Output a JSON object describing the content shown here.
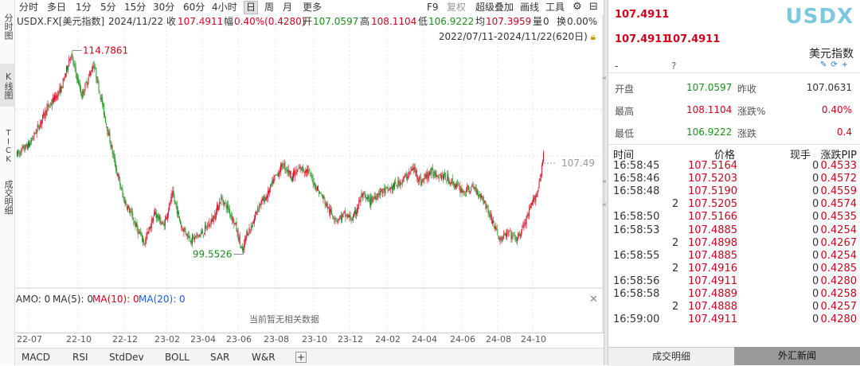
{
  "left_tabs": [
    {
      "label": "分时图",
      "active": false
    },
    {
      "label": "K线图",
      "active": true
    },
    {
      "label": "TICK",
      "active": false
    },
    {
      "label": "成交明细",
      "active": false
    }
  ],
  "periods": {
    "items": [
      "分时",
      "多日",
      "1分",
      "5分",
      "15分",
      "30分",
      "60分",
      "4小时",
      "日",
      "周",
      "月",
      "更多"
    ],
    "active": "日",
    "right_items": [
      "F9",
      "复权",
      "超级叠加",
      "画线",
      "工具"
    ]
  },
  "info": {
    "symbol": "USDX.FX[美元指数]",
    "date": "2024/11/22",
    "close_label": "收",
    "close": "107.4911",
    "amp_label": "幅",
    "amp": "0.40%(0.4280)",
    "open_label": "开",
    "open": "107.0597",
    "high_label": "高",
    "high": "108.1104",
    "low_label": "低",
    "low": "106.9222",
    "avg_label": "均",
    "avg": "107.3959",
    "vol_label": "量",
    "vol": "0",
    "turn_label": "换",
    "turn": "0.00%"
  },
  "range": "2022/07/11-2024/11/22(620日)",
  "indicators": {
    "amo": "AMO: 0",
    "ma5": "MA(5): 0",
    "ma10": "MA(10): 0",
    "ma20": "MA(20): 0",
    "nodata": "当前暂无相关数据"
  },
  "bottom_tabs": [
    "MACD",
    "RSI",
    "StdDev",
    "BOLL",
    "SAR",
    "W&R"
  ],
  "chart_data": {
    "type": "candlestick",
    "x_ticks": [
      "22-07",
      "22-10",
      "22-12",
      "23-02",
      "23-04",
      "23-06",
      "23-08",
      "23-10",
      "23-12",
      "24-02",
      "24-04",
      "24-06",
      "24-08",
      "24-10"
    ],
    "annotations": {
      "max": "114.7861",
      "min": "99.5526",
      "last": "107.49"
    },
    "ylim": [
      97.5,
      116.0
    ],
    "anchors": [
      [
        0,
        107.2
      ],
      [
        15,
        108.0
      ],
      [
        35,
        110.5
      ],
      [
        52,
        112.0
      ],
      [
        63,
        114.5
      ],
      [
        76,
        111.5
      ],
      [
        90,
        113.8
      ],
      [
        103,
        110.0
      ],
      [
        115,
        106.5
      ],
      [
        125,
        104.0
      ],
      [
        133,
        103.0
      ],
      [
        143,
        101.5
      ],
      [
        150,
        100.8
      ],
      [
        162,
        103.0
      ],
      [
        172,
        102.0
      ],
      [
        183,
        104.3
      ],
      [
        193,
        102.0
      ],
      [
        205,
        101.0
      ],
      [
        218,
        101.5
      ],
      [
        230,
        102.5
      ],
      [
        240,
        104.0
      ],
      [
        249,
        103.2
      ],
      [
        257,
        102.0
      ],
      [
        265,
        100.0
      ],
      [
        270,
        101.5
      ],
      [
        276,
        102.0
      ],
      [
        284,
        103.5
      ],
      [
        294,
        104.2
      ],
      [
        303,
        105.5
      ],
      [
        313,
        106.5
      ],
      [
        323,
        105.6
      ],
      [
        333,
        106.2
      ],
      [
        342,
        106.0
      ],
      [
        352,
        104.8
      ],
      [
        360,
        104.0
      ],
      [
        368,
        103.0
      ],
      [
        376,
        102.5
      ],
      [
        385,
        102.8
      ],
      [
        395,
        102.5
      ],
      [
        405,
        104.2
      ],
      [
        415,
        103.8
      ],
      [
        426,
        104.5
      ],
      [
        436,
        104.6
      ],
      [
        446,
        105.0
      ],
      [
        456,
        105.5
      ],
      [
        466,
        106.2
      ],
      [
        475,
        105.2
      ],
      [
        485,
        105.9
      ],
      [
        495,
        105.8
      ],
      [
        505,
        105.5
      ],
      [
        515,
        105.0
      ],
      [
        525,
        104.5
      ],
      [
        537,
        104.8
      ],
      [
        548,
        104.0
      ],
      [
        558,
        102.5
      ],
      [
        568,
        101.0
      ],
      [
        578,
        101.5
      ],
      [
        588,
        101.0
      ],
      [
        598,
        102.3
      ],
      [
        605,
        103.5
      ],
      [
        612,
        104.5
      ],
      [
        620,
        107.5
      ]
    ]
  },
  "quote": {
    "last1": "107.4911",
    "last2": "107.4911",
    "last3": "107.4911",
    "code": "USDX",
    "name": "美元指数",
    "dash": "-",
    "qmark": "?",
    "open_label": "开盘",
    "open": "107.0597",
    "prev_label": "昨收",
    "prev": "107.0631",
    "high_label": "最高",
    "high": "108.1104",
    "chgpct_label": "涨跌%",
    "chgpct": "0.40%",
    "low_label": "最低",
    "low": "106.9222",
    "chg_label": "涨跌",
    "chg": "0.4"
  },
  "ticks": {
    "headers": {
      "time": "时间",
      "price": "价格",
      "vol": "现手",
      "pip": "涨跌PIP"
    },
    "rows": [
      [
        "16:58:45",
        "107.5164",
        "0",
        "0.4533"
      ],
      [
        "16:58:46",
        "107.5203",
        "0",
        "0.4572"
      ],
      [
        "16:58:48",
        "107.5190",
        "0",
        "0.4559"
      ],
      [
        "2",
        "107.5205",
        "0",
        "0.4574"
      ],
      [
        "16:58:50",
        "107.5166",
        "0",
        "0.4535"
      ],
      [
        "16:58:53",
        "107.4885",
        "0",
        "0.4254"
      ],
      [
        "2",
        "107.4898",
        "0",
        "0.4267"
      ],
      [
        "16:58:55",
        "107.4885",
        "0",
        "0.4254"
      ],
      [
        "2",
        "107.4916",
        "0",
        "0.4285"
      ],
      [
        "16:58:56",
        "107.4911",
        "0",
        "0.4280"
      ],
      [
        "16:58:58",
        "107.4889",
        "0",
        "0.4258"
      ],
      [
        "2",
        "107.4888",
        "0",
        "0.4257"
      ],
      [
        "16:59:00",
        "107.4911",
        "0",
        "0.4280"
      ]
    ]
  },
  "right_tabs": [
    "成交明细",
    "外汇新闻"
  ]
}
